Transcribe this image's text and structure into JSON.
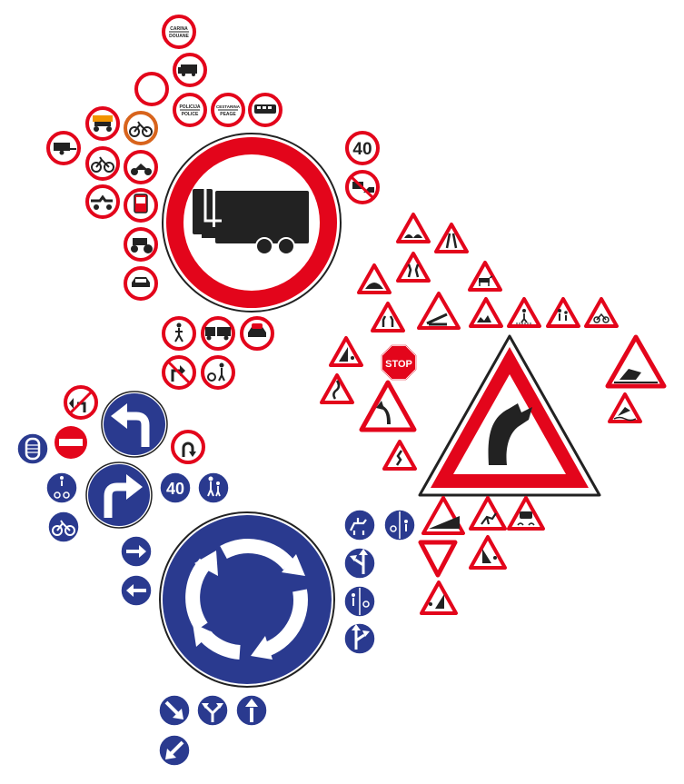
{
  "colors": {
    "red": "#e3051b",
    "blue": "#2a3a8f",
    "black": "#222222",
    "white": "#ffffff",
    "orange": "#f29400"
  },
  "labels": {
    "speed_limit_red": "40",
    "speed_limit_blue": "40",
    "stop": "STOP",
    "plate_1_top": "CARINA",
    "plate_1_bottom": "DOUANE",
    "plate_2_top": "POLICIJA",
    "plate_2_bottom": "POLICE",
    "plate_3_top": "CESTARINA",
    "plate_3_bottom": "PEAGE"
  },
  "icons": {
    "large_prohibitory": "truck-with-trailer-icon",
    "large_warning": "curve-right-icon",
    "large_mandatory": "roundabout-icon"
  }
}
